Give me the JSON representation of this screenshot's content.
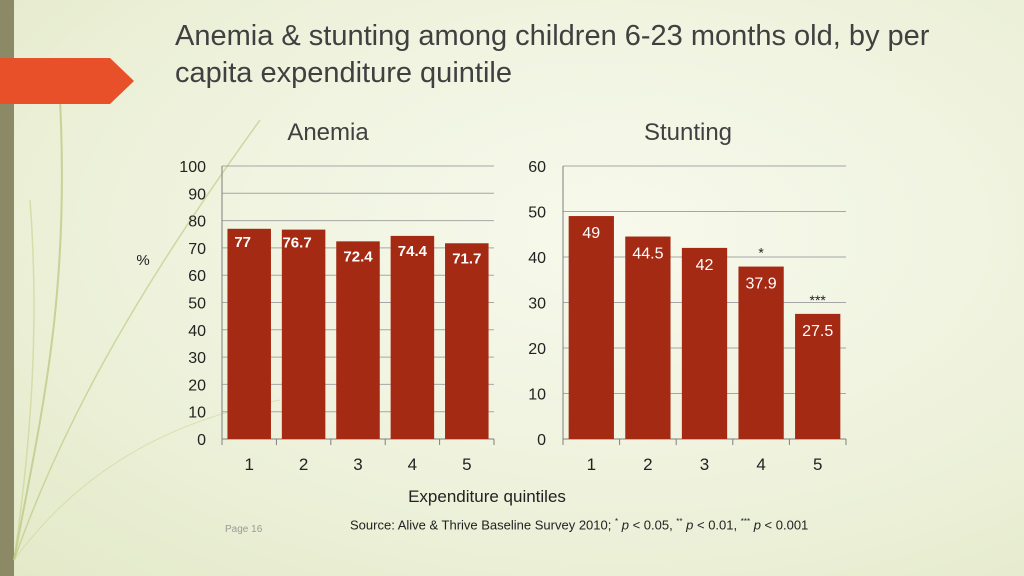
{
  "title": "Anemia & stunting among children 6-23 months old, by per capita expenditure quintile",
  "shared_y_label": "%",
  "shared_x_label": "Expenditure quintiles",
  "page_label": "Page 16",
  "source": {
    "prefix": "Source:  Alive & Thrive Baseline Survey 2010; ",
    "sig1_mark": "*",
    "sig1_text": " < 0.05, ",
    "sig2_mark": "**",
    "sig2_text": " < 0.01, ",
    "sig3_mark": "***",
    "sig3_text": " < 0.001",
    "p_symbol": "p"
  },
  "colors": {
    "bar": "#a52a13",
    "title": "#404040",
    "grid": "#a6a6a6"
  },
  "chart_data": [
    {
      "type": "bar",
      "title": "Anemia",
      "categories": [
        "1",
        "2",
        "3",
        "4",
        "5"
      ],
      "values": [
        77,
        76.7,
        72.4,
        74.4,
        71.7
      ],
      "value_labels": [
        "77",
        "76.7",
        "72.4",
        "74.4",
        "71.7"
      ],
      "annotations": [
        "",
        "",
        "",
        "",
        ""
      ],
      "ylim": [
        0,
        100
      ],
      "yticks": [
        0,
        10,
        20,
        30,
        40,
        50,
        60,
        70,
        80,
        90,
        100
      ],
      "grid": true
    },
    {
      "type": "bar",
      "title": "Stunting",
      "categories": [
        "1",
        "2",
        "3",
        "4",
        "5"
      ],
      "values": [
        49,
        44.5,
        42,
        37.9,
        27.5
      ],
      "value_labels": [
        "49",
        "44.5",
        "42",
        "37.9",
        "27.5"
      ],
      "annotations": [
        "",
        "",
        "",
        "*",
        "***"
      ],
      "ylim": [
        0,
        60
      ],
      "yticks": [
        0,
        10,
        20,
        30,
        40,
        50,
        60
      ],
      "grid": true
    }
  ]
}
